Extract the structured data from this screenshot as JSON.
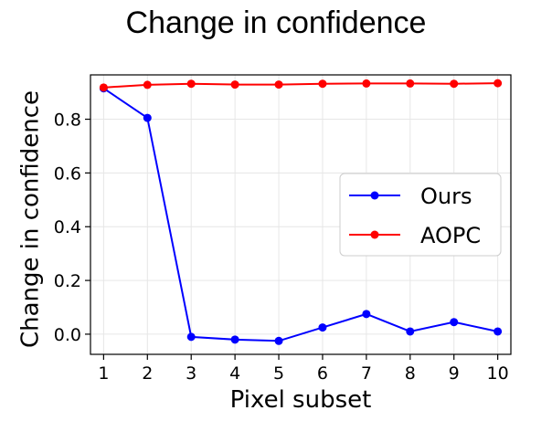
{
  "slide": {
    "title": "Change in confidence"
  },
  "chart_data": {
    "type": "line",
    "x": [
      1,
      2,
      3,
      4,
      5,
      6,
      7,
      8,
      9,
      10
    ],
    "xlabel": "Pixel subset",
    "ylabel": "Change in confidence",
    "xlim": [
      0.7,
      10.3
    ],
    "ylim": [
      -0.075,
      0.965
    ],
    "xticks": [
      1,
      2,
      3,
      4,
      5,
      6,
      7,
      8,
      9,
      10
    ],
    "yticks": [
      0.0,
      0.2,
      0.4,
      0.6,
      0.8
    ],
    "ytick_labels": [
      "0.0",
      "0.2",
      "0.4",
      "0.6",
      "0.8"
    ],
    "grid": true,
    "legend_position": "center-right",
    "series": [
      {
        "name": "Ours",
        "color": "#0000ff",
        "values": [
          0.915,
          0.805,
          -0.01,
          -0.02,
          -0.025,
          0.025,
          0.075,
          0.01,
          0.045,
          0.01
        ]
      },
      {
        "name": "AOPC",
        "color": "#ff0000",
        "values": [
          0.918,
          0.928,
          0.932,
          0.929,
          0.929,
          0.932,
          0.933,
          0.933,
          0.932,
          0.934
        ]
      }
    ]
  }
}
